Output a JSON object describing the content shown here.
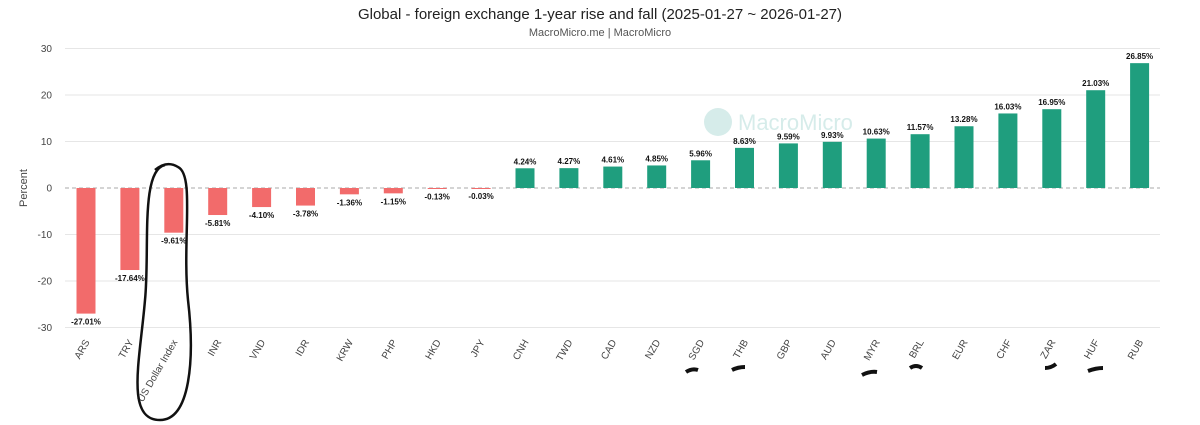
{
  "chart_data": {
    "type": "bar",
    "title": "Global - foreign exchange 1-year rise and fall (2025-01-27 ~ 2026-01-27)",
    "subtitle": "MacroMicro.me | MacroMicro",
    "ylabel": "Percent",
    "xlabel": "",
    "ylim": [
      -30,
      30
    ],
    "yticks": [
      30,
      20,
      10,
      0,
      -10,
      -20,
      -30
    ],
    "grid": true,
    "watermark": "MacroMicro",
    "colors": {
      "positive": "#1f9e7e",
      "negative": "#f26b6b",
      "zero_line": "#aaaaaa"
    },
    "categories": [
      "ARS",
      "TRY",
      "US Dollar Index",
      "INR",
      "VND",
      "IDR",
      "KRW",
      "PHP",
      "HKD",
      "JPY",
      "CNH",
      "TWD",
      "CAD",
      "NZD",
      "SGD",
      "THB",
      "GBP",
      "AUD",
      "MYR",
      "BRL",
      "EUR",
      "CHF",
      "ZAR",
      "HUF",
      "RUB"
    ],
    "values": [
      -27.01,
      -17.64,
      -9.61,
      -5.81,
      -4.1,
      -3.78,
      -1.36,
      -1.15,
      -0.13,
      -0.03,
      4.24,
      4.27,
      4.61,
      4.85,
      5.96,
      8.63,
      9.59,
      9.93,
      10.63,
      11.57,
      13.28,
      16.03,
      16.95,
      21.03,
      26.85
    ],
    "data_labels": [
      "-27.01%",
      "-17.64%",
      "-9.61%",
      "-5.81%",
      "-4.10%",
      "-3.78%",
      "-1.36%",
      "-1.15%",
      "-0.13%",
      "-0.03%",
      "4.24%",
      "4.27%",
      "4.61%",
      "4.85%",
      "5.96%",
      "8.63%",
      "9.59%",
      "9.93%",
      "10.63%",
      "11.57%",
      "13.28%",
      "16.03%",
      "16.95%",
      "21.03%",
      "26.85%"
    ]
  }
}
